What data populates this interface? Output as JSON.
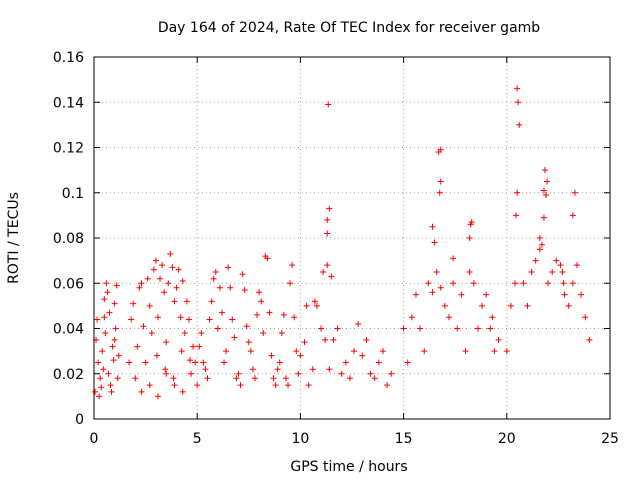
{
  "chart_data": {
    "type": "scatter",
    "title": "Day 164 of 2024, Rate Of TEC Index for receiver gamb",
    "xlabel": "GPS time / hours",
    "ylabel": "ROTI / TECUs",
    "xlim": [
      0,
      25
    ],
    "ylim": [
      0,
      0.16
    ],
    "xticks": [
      0,
      5,
      10,
      15,
      20,
      25
    ],
    "yticks": [
      0,
      0.02,
      0.04,
      0.06,
      0.08,
      0.1,
      0.12,
      0.14,
      0.16
    ],
    "xtick_labels": [
      "0",
      "5",
      "10",
      "15",
      "20",
      "25"
    ],
    "ytick_labels": [
      "0",
      "0.02",
      "0.04",
      "0.06",
      "0.08",
      "0.1",
      "0.12",
      "0.14",
      "0.16"
    ],
    "grid": true,
    "marker": "+",
    "marker_color": "#ff0000",
    "series": [
      {
        "name": "ROTI",
        "x": [
          0.05,
          0.1,
          0.15,
          0.2,
          0.3,
          0.4,
          0.5,
          0.6,
          0.7,
          0.8,
          0.9,
          1.0,
          1.1,
          1.2,
          0.35,
          0.45,
          0.55,
          0.65,
          0.75,
          0.85,
          0.95,
          1.05,
          1.15,
          0.25,
          0.5,
          1.0,
          1.7,
          1.8,
          1.9,
          2.0,
          2.1,
          2.2,
          2.3,
          2.4,
          2.5,
          2.6,
          2.7,
          2.8,
          2.9,
          3.0,
          3.1,
          3.2,
          3.3,
          3.4,
          3.5,
          3.6,
          3.7,
          3.8,
          3.9,
          4.0,
          4.1,
          4.2,
          4.3,
          4.4,
          4.5,
          4.6,
          4.7,
          4.8,
          4.9,
          2.3,
          2.7,
          3.1,
          3.5,
          3.9,
          4.3,
          3.05,
          3.45,
          3.85,
          4.25,
          4.65,
          5.0,
          5.1,
          5.2,
          5.3,
          5.4,
          5.5,
          5.6,
          5.7,
          5.8,
          5.9,
          6.0,
          6.1,
          6.2,
          6.3,
          6.4,
          6.5,
          6.6,
          6.7,
          6.8,
          6.9,
          7.0,
          7.1,
          7.2,
          7.3,
          7.4,
          7.5,
          7.6,
          7.7,
          7.8,
          7.9,
          8.0,
          8.1,
          8.2,
          8.3,
          8.4,
          8.5,
          8.6,
          8.7,
          8.8,
          8.9,
          9.0,
          9.1,
          9.2,
          9.3,
          9.4,
          9.5,
          9.6,
          9.7,
          9.8,
          9.9,
          10.0,
          10.2,
          10.4,
          10.6,
          10.8,
          11.0,
          11.2,
          11.4,
          11.6,
          11.8,
          12.0,
          12.2,
          12.4,
          12.6,
          12.8,
          13.0,
          13.2,
          13.4,
          13.6,
          13.8,
          14.0,
          14.2,
          14.4,
          10.3,
          10.7,
          11.1,
          11.3,
          11.35,
          11.3,
          11.3,
          11.4,
          11.5,
          15.0,
          15.2,
          15.4,
          15.6,
          15.8,
          16.0,
          16.2,
          16.4,
          16.6,
          16.8,
          17.0,
          17.2,
          17.4,
          17.6,
          17.8,
          18.0,
          18.2,
          18.4,
          18.6,
          18.8,
          19.0,
          19.2,
          19.4,
          19.6,
          16.8,
          16.7,
          16.8,
          16.75,
          16.4,
          16.5,
          17.4,
          18.2,
          18.3,
          18.25,
          19.3,
          20.0,
          20.2,
          20.4,
          20.45,
          20.5,
          20.5,
          20.55,
          20.6,
          20.8,
          21.0,
          21.2,
          21.4,
          21.6,
          21.8,
          21.85,
          21.9,
          21.95,
          21.8,
          22.0,
          22.2,
          22.4,
          22.6,
          22.7,
          22.75,
          22.8,
          23.0,
          23.2,
          23.4,
          23.6,
          23.8,
          24.0,
          21.6,
          21.7,
          23.2,
          23.3
        ],
        "y": [
          0.012,
          0.035,
          0.044,
          0.025,
          0.018,
          0.03,
          0.045,
          0.06,
          0.02,
          0.015,
          0.032,
          0.051,
          0.059,
          0.028,
          0.014,
          0.022,
          0.038,
          0.056,
          0.047,
          0.012,
          0.026,
          0.04,
          0.018,
          0.01,
          0.053,
          0.035,
          0.025,
          0.044,
          0.051,
          0.018,
          0.032,
          0.058,
          0.06,
          0.041,
          0.025,
          0.062,
          0.05,
          0.038,
          0.066,
          0.07,
          0.045,
          0.062,
          0.068,
          0.056,
          0.034,
          0.06,
          0.073,
          0.067,
          0.052,
          0.058,
          0.066,
          0.045,
          0.061,
          0.038,
          0.052,
          0.044,
          0.02,
          0.032,
          0.025,
          0.012,
          0.015,
          0.01,
          0.02,
          0.015,
          0.012,
          0.028,
          0.022,
          0.018,
          0.03,
          0.026,
          0.015,
          0.032,
          0.038,
          0.025,
          0.022,
          0.018,
          0.044,
          0.052,
          0.062,
          0.065,
          0.04,
          0.058,
          0.047,
          0.025,
          0.03,
          0.067,
          0.058,
          0.044,
          0.036,
          0.018,
          0.02,
          0.015,
          0.064,
          0.057,
          0.041,
          0.034,
          0.03,
          0.022,
          0.018,
          0.046,
          0.056,
          0.052,
          0.038,
          0.072,
          0.071,
          0.047,
          0.028,
          0.018,
          0.015,
          0.022,
          0.025,
          0.038,
          0.046,
          0.018,
          0.015,
          0.06,
          0.068,
          0.045,
          0.03,
          0.02,
          0.028,
          0.034,
          0.015,
          0.022,
          0.05,
          0.04,
          0.035,
          0.022,
          0.035,
          0.04,
          0.02,
          0.025,
          0.018,
          0.03,
          0.042,
          0.028,
          0.035,
          0.02,
          0.018,
          0.025,
          0.03,
          0.015,
          0.02,
          0.05,
          0.052,
          0.065,
          0.068,
          0.139,
          0.082,
          0.088,
          0.093,
          0.063,
          0.04,
          0.025,
          0.045,
          0.055,
          0.04,
          0.03,
          0.06,
          0.056,
          0.065,
          0.058,
          0.05,
          0.045,
          0.06,
          0.04,
          0.055,
          0.03,
          0.065,
          0.06,
          0.04,
          0.05,
          0.055,
          0.04,
          0.03,
          0.035,
          0.119,
          0.118,
          0.105,
          0.1,
          0.085,
          0.078,
          0.071,
          0.08,
          0.087,
          0.086,
          0.045,
          0.03,
          0.05,
          0.06,
          0.09,
          0.1,
          0.146,
          0.14,
          0.13,
          0.06,
          0.05,
          0.065,
          0.07,
          0.075,
          0.101,
          0.11,
          0.099,
          0.105,
          0.089,
          0.06,
          0.065,
          0.07,
          0.068,
          0.065,
          0.06,
          0.055,
          0.05,
          0.06,
          0.068,
          0.055,
          0.045,
          0.035,
          0.08,
          0.077,
          0.09,
          0.1
        ]
      }
    ]
  }
}
